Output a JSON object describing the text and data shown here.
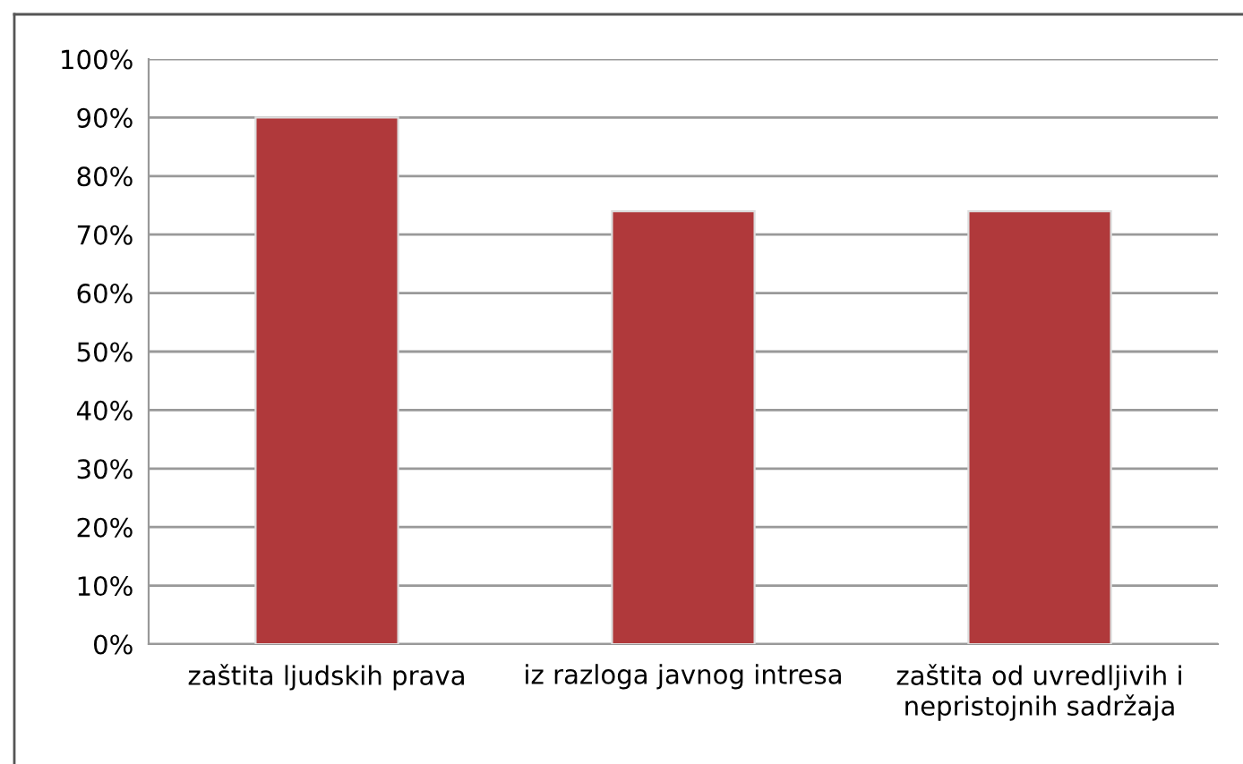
{
  "chart_data": {
    "type": "bar",
    "categories": [
      "zaštita ljudskih prava",
      "iz razloga javnog intresa",
      "zaštita od uvredljivih i\nnepristojnih sadržaja"
    ],
    "values": [
      90,
      74,
      74
    ],
    "color": "#b0393b",
    "ylim": [
      0,
      100
    ],
    "yticks": [
      {
        "value": 0,
        "label": "0%"
      },
      {
        "value": 10,
        "label": "10%"
      },
      {
        "value": 20,
        "label": "20%"
      },
      {
        "value": 30,
        "label": "30%"
      },
      {
        "value": 40,
        "label": "40%"
      },
      {
        "value": 50,
        "label": "50%"
      },
      {
        "value": 60,
        "label": "60%"
      },
      {
        "value": 70,
        "label": "70%"
      },
      {
        "value": 80,
        "label": "80%"
      },
      {
        "value": 90,
        "label": "90%"
      },
      {
        "value": 100,
        "label": "100%"
      }
    ],
    "grid": "y",
    "legend": false
  }
}
